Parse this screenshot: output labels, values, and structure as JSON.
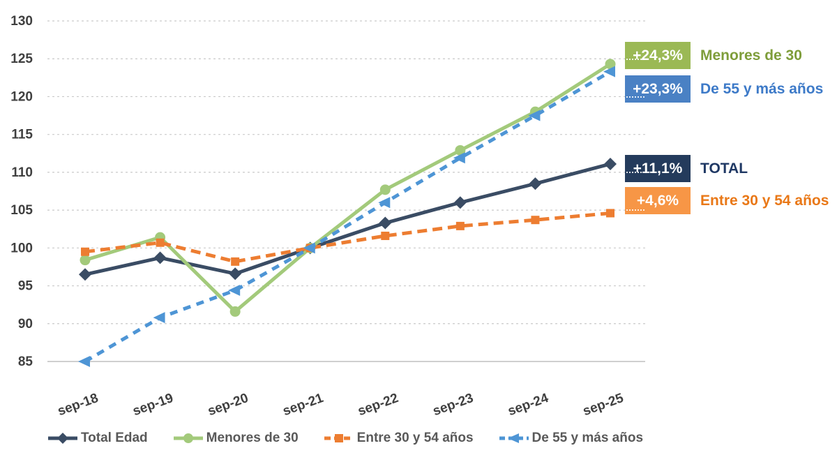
{
  "chart_data": {
    "type": "line",
    "title": "",
    "xlabel": "",
    "ylabel": "",
    "ylim": [
      85,
      130
    ],
    "y_ticks": [
      85,
      90,
      95,
      100,
      105,
      110,
      115,
      120,
      125,
      130
    ],
    "grid": "horizontal-dashed",
    "categories": [
      "sep-18",
      "sep-19",
      "sep-20",
      "sep-21",
      "sep-22",
      "sep-23",
      "sep-24",
      "sep-25"
    ],
    "series": [
      {
        "name": "Total Edad",
        "key": "total",
        "color": "#3A4C64",
        "line": "solid",
        "marker": "diamond",
        "values": [
          96.5,
          98.7,
          96.6,
          100.0,
          103.3,
          106.0,
          108.5,
          111.1
        ]
      },
      {
        "name": "Menores de 30",
        "key": "menores",
        "color": "#A3CA7B",
        "line": "solid",
        "marker": "circle",
        "values": [
          98.4,
          101.4,
          91.6,
          100.0,
          107.7,
          112.9,
          118.0,
          124.3
        ]
      },
      {
        "name": "Entre 30 y 54 años",
        "key": "entre",
        "color": "#ED7D31",
        "line": "dashed",
        "dash_pattern": "14 8",
        "marker": "square",
        "values": [
          99.5,
          100.7,
          98.2,
          100.0,
          101.6,
          102.9,
          103.7,
          104.6
        ]
      },
      {
        "name": "De 55 y más años",
        "key": "de55",
        "color": "#4E95D5",
        "line": "dashed",
        "dash_pattern": "11 9",
        "marker": "triangle-left",
        "values": [
          85.0,
          90.8,
          94.4,
          100.0,
          106.0,
          111.9,
          117.5,
          123.3
        ]
      }
    ],
    "annotations": [
      {
        "key": "menores",
        "badge": "+24,3%",
        "label": "Menores de 30",
        "badge_color": "#9BB955",
        "label_color": "#7E9D3A"
      },
      {
        "key": "de55",
        "badge": "+23,3%",
        "label": "De 55 y más años",
        "badge_color": "#4A81C4",
        "label_color": "#3D7AC8"
      },
      {
        "key": "total",
        "badge": "+11,1%",
        "label": "TOTAL",
        "badge_color": "#243B5C",
        "label_color": "#1F3864"
      },
      {
        "key": "entre",
        "badge": "+4,6%",
        "label": "Entre 30 y 54 años",
        "badge_color": "#F79646",
        "label_color": "#E97817"
      }
    ],
    "colors": {
      "gridline": "#C9C9C9",
      "axis_line": "#BFBFBF",
      "tick_text": "#3F3F3F",
      "legend_text": "#595959",
      "background": "#FFFFFF"
    },
    "legend_position": "bottom-center"
  }
}
